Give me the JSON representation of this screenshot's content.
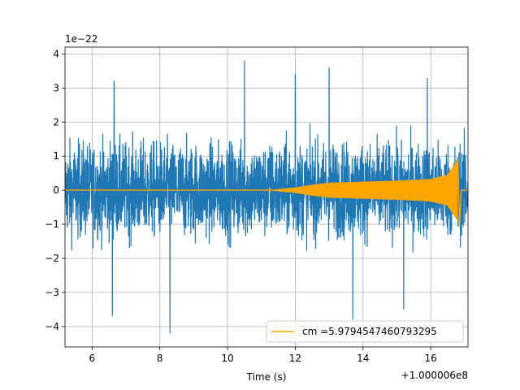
{
  "chart_data": {
    "type": "line",
    "xlabel": "Time (s)",
    "x_offset_text": "+1.000006e8",
    "y_scale_text": "1e−22",
    "xlim": [
      5.2,
      17.1
    ],
    "ylim": [
      -4.6,
      4.2
    ],
    "xticks": [
      6,
      8,
      10,
      12,
      14,
      16
    ],
    "yticks": [
      -4,
      -3,
      -2,
      -1,
      0,
      1,
      2,
      3,
      4
    ],
    "grid": true,
    "legend_position": "lower-right",
    "series": [
      {
        "kind": "noise",
        "color": "#1f77b4",
        "envelope_abs_max": 4.2,
        "typical_abs": 2.0,
        "notable_spikes": [
          {
            "x": 6.65,
            "y": 3.2
          },
          {
            "x": 10.5,
            "y": 3.8
          },
          {
            "x": 12.0,
            "y": 3.4
          },
          {
            "x": 13.0,
            "y": 3.6
          },
          {
            "x": 15.9,
            "y": 3.3
          },
          {
            "x": 8.3,
            "y": -4.2
          },
          {
            "x": 6.6,
            "y": -3.7
          },
          {
            "x": 13.7,
            "y": -3.8
          },
          {
            "x": 15.2,
            "y": -3.5
          }
        ]
      },
      {
        "name": "cm =5.9794547460793295",
        "kind": "chirp",
        "color": "#ffa500",
        "amplitude_points": [
          {
            "x": 5.2,
            "y": 0.0
          },
          {
            "x": 11.2,
            "y": 0.0
          },
          {
            "x": 12.0,
            "y": 0.08
          },
          {
            "x": 12.5,
            "y": 0.16
          },
          {
            "x": 13.0,
            "y": 0.22
          },
          {
            "x": 14.0,
            "y": 0.25
          },
          {
            "x": 15.0,
            "y": 0.28
          },
          {
            "x": 16.0,
            "y": 0.33
          },
          {
            "x": 16.5,
            "y": 0.45
          },
          {
            "x": 16.8,
            "y": 0.9
          },
          {
            "x": 16.85,
            "y": -1.05
          },
          {
            "x": 16.9,
            "y": 0.0
          },
          {
            "x": 17.1,
            "y": 0.0
          }
        ]
      }
    ]
  }
}
